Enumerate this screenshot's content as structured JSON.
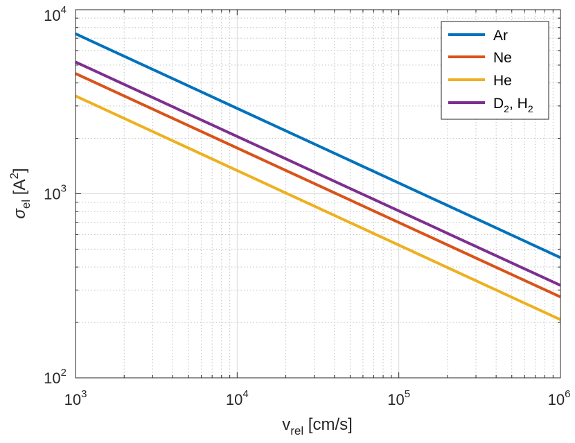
{
  "chart_data": {
    "type": "line",
    "xscale": "log",
    "yscale": "log",
    "xlim": [
      1000,
      1000000
    ],
    "ylim": [
      100,
      10000
    ],
    "grid": true,
    "minor_grid": true,
    "legend_position": "top-right",
    "xlabel": {
      "base": "v",
      "sub": "rel",
      "rest": " [cm/s]"
    },
    "ylabel": {
      "base": "σ",
      "sub": "el",
      "rest_open": " [A",
      "sup": "2",
      "rest_close": "]"
    },
    "x_ticks": [
      {
        "value": 1000,
        "base": "10",
        "exp": "3"
      },
      {
        "value": 10000,
        "base": "10",
        "exp": "4"
      },
      {
        "value": 100000,
        "base": "10",
        "exp": "5"
      },
      {
        "value": 1000000,
        "base": "10",
        "exp": "6"
      }
    ],
    "y_ticks": [
      {
        "value": 100,
        "base": "10",
        "exp": "2"
      },
      {
        "value": 1000,
        "base": "10",
        "exp": "3"
      },
      {
        "value": 10000,
        "base": "10",
        "exp": "4"
      }
    ],
    "series": [
      {
        "name": "Ar",
        "label": {
          "text": "Ar"
        },
        "color": "#0072BD",
        "x": [
          1000,
          1000000
        ],
        "y": [
          7400,
          450
        ]
      },
      {
        "name": "Ne",
        "label": {
          "text": "Ne"
        },
        "color": "#D95319",
        "x": [
          1000,
          1000000
        ],
        "y": [
          4500,
          275
        ]
      },
      {
        "name": "He",
        "label": {
          "text": "He"
        },
        "color": "#EDB120",
        "x": [
          1000,
          1000000
        ],
        "y": [
          3400,
          207
        ]
      },
      {
        "name": "D2, H2",
        "label": {
          "p1": "D",
          "s1": "2",
          "p2": ", H",
          "s2": "2"
        },
        "color": "#7E2F8E",
        "x": [
          1000,
          1000000
        ],
        "y": [
          5200,
          318
        ]
      }
    ],
    "colors": {
      "axis": "#262626",
      "grid": "#d9d9d9",
      "minor_grid": "#bfbfbf",
      "background": "#ffffff"
    }
  }
}
